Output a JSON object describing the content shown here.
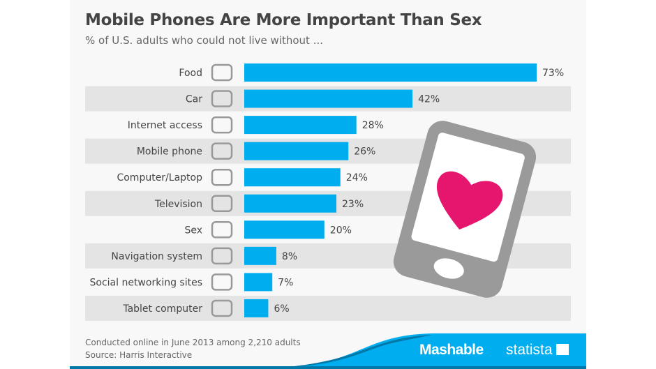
{
  "chart_data": {
    "type": "bar",
    "orientation": "horizontal",
    "title": "Mobile Phones Are More Important Than Sex",
    "subtitle": "% of U.S. adults who could not live without ...",
    "categories": [
      "Food",
      "Car",
      "Internet access",
      "Mobile phone",
      "Computer/Laptop",
      "Television",
      "Sex",
      "Navigation system",
      "Social networking sites",
      "Tablet computer"
    ],
    "icons": [
      "cutlery-icon",
      "car-icon",
      "globe-cursor-icon",
      "mobile-phone-icon",
      "laptop-icon",
      "television-icon",
      "heart-icon",
      "compass-icon",
      "people-icon",
      "tablet-icon"
    ],
    "values": [
      73,
      42,
      28,
      26,
      24,
      23,
      20,
      8,
      7,
      6
    ],
    "value_labels": [
      "73%",
      "42%",
      "28%",
      "26%",
      "24%",
      "23%",
      "20%",
      "8%",
      "7%",
      "6%"
    ],
    "xlim": [
      0,
      73
    ],
    "bar_color": "#00aeef",
    "grid": false
  },
  "footer": {
    "note": "Conducted online in June 2013 among 2,210 adults",
    "source": "Source: Harris Interactive",
    "brand1": "Mashable",
    "brand2": "statista"
  },
  "colors": {
    "accent": "#00aeef",
    "heart": "#e6166f",
    "phone": "#9a9a9a"
  }
}
